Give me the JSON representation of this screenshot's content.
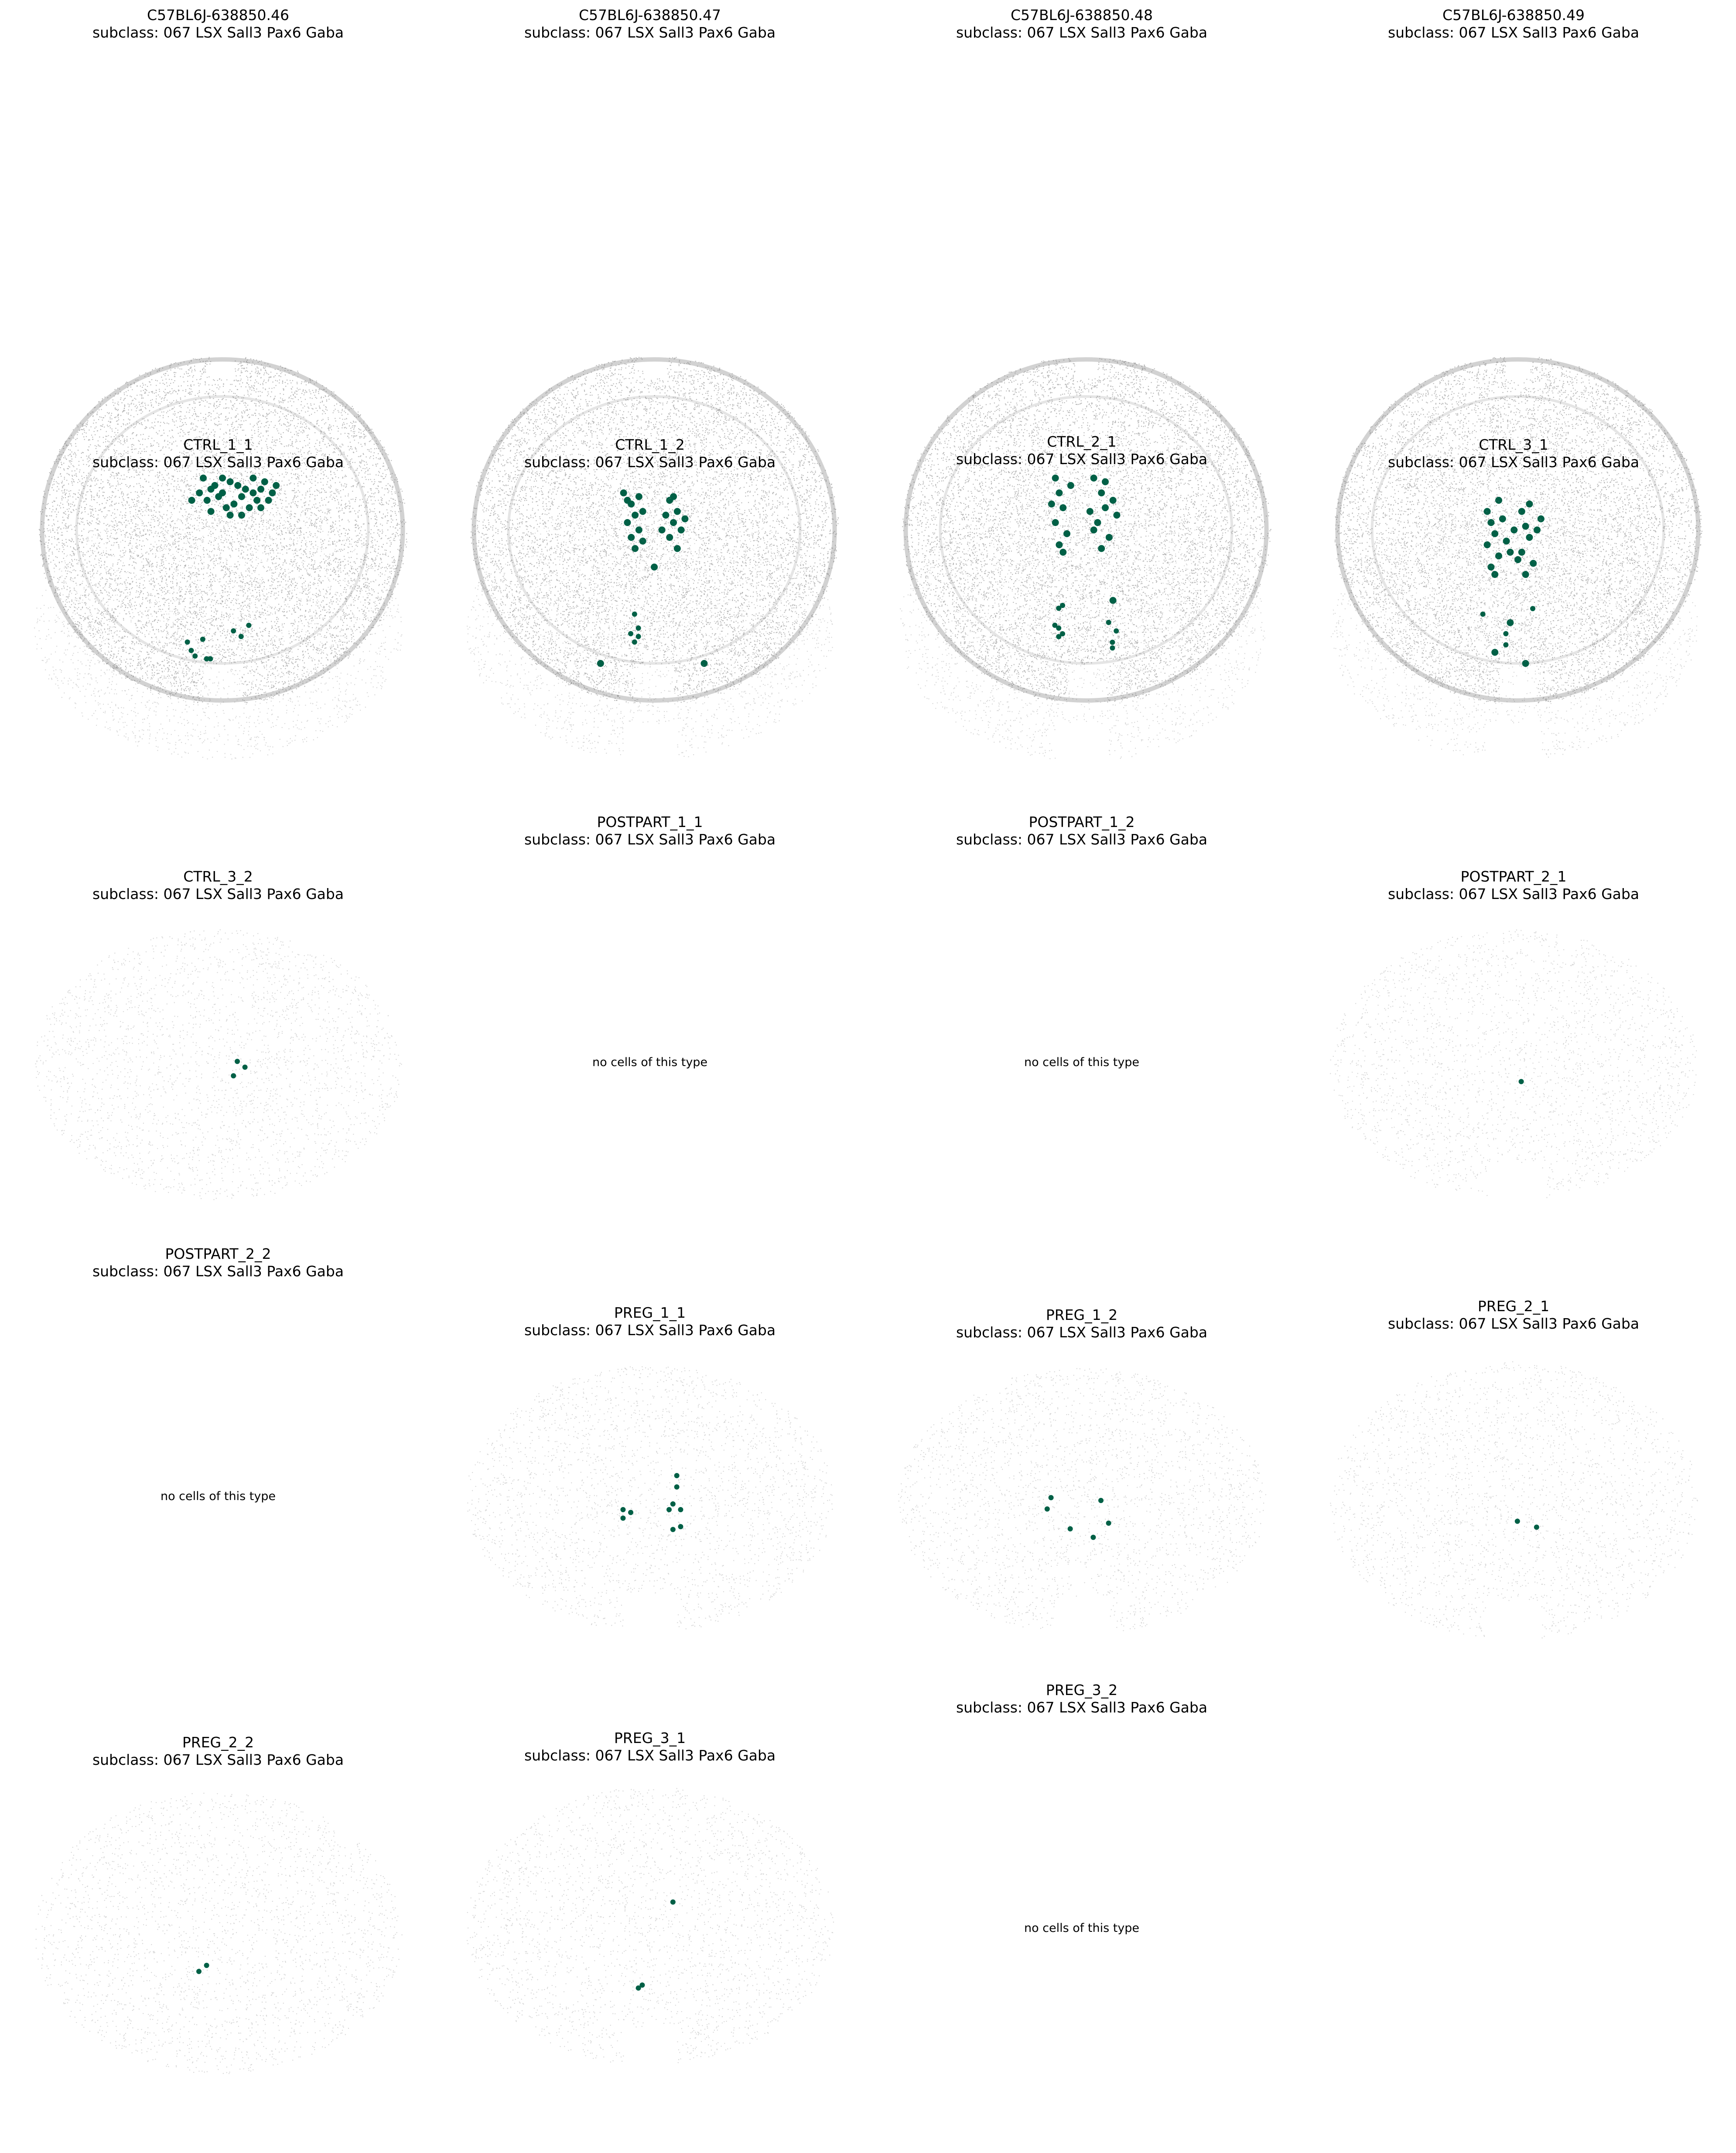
{
  "chart_data": {
    "type": "scatter",
    "cell_color": "#006046",
    "background_color": "#7f7f7f",
    "empty_message": "no cells of this type",
    "panels": [
      {
        "title": "C57BL6J-638850.46",
        "subtitle": "subclass: 067 LSX Sall3 Pax6 Gaba",
        "style": "dense",
        "shape": "full",
        "cells": [
          [
            0.48,
            0.38
          ],
          [
            0.5,
            0.4
          ],
          [
            0.52,
            0.37
          ],
          [
            0.46,
            0.42
          ],
          [
            0.55,
            0.41
          ],
          [
            0.58,
            0.36
          ],
          [
            0.6,
            0.39
          ],
          [
            0.62,
            0.42
          ],
          [
            0.57,
            0.44
          ],
          [
            0.45,
            0.36
          ],
          [
            0.51,
            0.44
          ],
          [
            0.54,
            0.38
          ],
          [
            0.49,
            0.41
          ],
          [
            0.61,
            0.37
          ],
          [
            0.63,
            0.4
          ],
          [
            0.47,
            0.39
          ],
          [
            0.53,
            0.43
          ],
          [
            0.59,
            0.42
          ],
          [
            0.56,
            0.39
          ],
          [
            0.44,
            0.4
          ],
          [
            0.5,
            0.36
          ],
          [
            0.6,
            0.44
          ],
          [
            0.42,
            0.42
          ],
          [
            0.58,
            0.4
          ],
          [
            0.52,
            0.46
          ],
          [
            0.64,
            0.38
          ],
          [
            0.47,
            0.45
          ],
          [
            0.55,
            0.46
          ]
        ]
      },
      {
        "title": "C57BL6J-638850.47",
        "subtitle": "subclass: 067 LSX Sall3 Pax6 Gaba",
        "style": "dense",
        "shape": "full",
        "cells": [
          [
            0.42,
            0.4
          ],
          [
            0.44,
            0.43
          ],
          [
            0.45,
            0.46
          ],
          [
            0.43,
            0.48
          ],
          [
            0.46,
            0.5
          ],
          [
            0.44,
            0.52
          ],
          [
            0.47,
            0.45
          ],
          [
            0.45,
            0.55
          ],
          [
            0.43,
            0.42
          ],
          [
            0.46,
            0.41
          ],
          [
            0.54,
            0.42
          ],
          [
            0.56,
            0.45
          ],
          [
            0.55,
            0.48
          ],
          [
            0.57,
            0.5
          ],
          [
            0.54,
            0.52
          ],
          [
            0.56,
            0.55
          ],
          [
            0.53,
            0.46
          ],
          [
            0.58,
            0.47
          ],
          [
            0.55,
            0.41
          ],
          [
            0.52,
            0.5
          ],
          [
            0.47,
            0.53
          ],
          [
            0.5,
            0.6
          ],
          [
            0.36,
            0.86
          ],
          [
            0.63,
            0.86
          ]
        ]
      },
      {
        "title": "C57BL6J-638850.48",
        "subtitle": "subclass: 067 LSX Sall3 Pax6 Gaba",
        "style": "dense",
        "shape": "full",
        "cells": [
          [
            0.42,
            0.36
          ],
          [
            0.43,
            0.4
          ],
          [
            0.44,
            0.44
          ],
          [
            0.42,
            0.48
          ],
          [
            0.45,
            0.51
          ],
          [
            0.43,
            0.54
          ],
          [
            0.41,
            0.43
          ],
          [
            0.46,
            0.38
          ],
          [
            0.44,
            0.56
          ],
          [
            0.52,
            0.36
          ],
          [
            0.54,
            0.4
          ],
          [
            0.55,
            0.44
          ],
          [
            0.53,
            0.48
          ],
          [
            0.56,
            0.52
          ],
          [
            0.54,
            0.55
          ],
          [
            0.57,
            0.42
          ],
          [
            0.52,
            0.5
          ],
          [
            0.58,
            0.46
          ],
          [
            0.55,
            0.37
          ],
          [
            0.51,
            0.45
          ],
          [
            0.57,
            0.69
          ]
        ]
      },
      {
        "title": "C57BL6J-638850.49",
        "subtitle": "subclass: 067 LSX Sall3 Pax6 Gaba",
        "style": "dense",
        "shape": "full",
        "cells": [
          [
            0.42,
            0.45
          ],
          [
            0.43,
            0.48
          ],
          [
            0.44,
            0.51
          ],
          [
            0.42,
            0.54
          ],
          [
            0.45,
            0.57
          ],
          [
            0.43,
            0.6
          ],
          [
            0.46,
            0.47
          ],
          [
            0.44,
            0.62
          ],
          [
            0.47,
            0.53
          ],
          [
            0.51,
            0.45
          ],
          [
            0.52,
            0.49
          ],
          [
            0.53,
            0.52
          ],
          [
            0.51,
            0.56
          ],
          [
            0.54,
            0.59
          ],
          [
            0.52,
            0.62
          ],
          [
            0.55,
            0.5
          ],
          [
            0.5,
            0.58
          ],
          [
            0.56,
            0.47
          ],
          [
            0.48,
            0.56
          ],
          [
            0.49,
            0.5
          ],
          [
            0.45,
            0.42
          ],
          [
            0.53,
            0.43
          ],
          [
            0.48,
            0.75
          ],
          [
            0.44,
            0.83
          ],
          [
            0.52,
            0.86
          ]
        ]
      },
      {
        "title": "CTRL_1_1",
        "subtitle": "subclass: 067 LSX Sall3 Pax6 Gaba",
        "style": "sparse",
        "shape": "round",
        "cells": [
          [
            0.42,
            0.55
          ],
          [
            0.43,
            0.58
          ],
          [
            0.44,
            0.6
          ],
          [
            0.46,
            0.54
          ],
          [
            0.47,
            0.61
          ],
          [
            0.48,
            0.61
          ],
          [
            0.54,
            0.51
          ],
          [
            0.56,
            0.53
          ],
          [
            0.58,
            0.49
          ]
        ]
      },
      {
        "title": "CTRL_1_2",
        "subtitle": "subclass: 067 LSX Sall3 Pax6 Gaba",
        "style": "sparse",
        "shape": "notched",
        "cells": [
          [
            0.46,
            0.45
          ],
          [
            0.45,
            0.52
          ],
          [
            0.47,
            0.5
          ],
          [
            0.47,
            0.53
          ],
          [
            0.46,
            0.55
          ]
        ]
      },
      {
        "title": "CTRL_2_1",
        "subtitle": "subclass: 067 LSX Sall3 Pax6 Gaba",
        "style": "sparse",
        "shape": "notched",
        "cells": [
          [
            0.44,
            0.43
          ],
          [
            0.45,
            0.42
          ],
          [
            0.43,
            0.49
          ],
          [
            0.44,
            0.5
          ],
          [
            0.45,
            0.52
          ],
          [
            0.44,
            0.53
          ],
          [
            0.57,
            0.48
          ],
          [
            0.59,
            0.51
          ],
          [
            0.58,
            0.55
          ],
          [
            0.58,
            0.57
          ]
        ]
      },
      {
        "title": "CTRL_3_1",
        "subtitle": "subclass: 067 LSX Sall3 Pax6 Gaba",
        "style": "sparse",
        "shape": "notched",
        "cells": [
          [
            0.42,
            0.45
          ],
          [
            0.48,
            0.52
          ],
          [
            0.48,
            0.56
          ],
          [
            0.55,
            0.43
          ]
        ]
      },
      {
        "title": "CTRL_3_2",
        "subtitle": "subclass: 067 LSX Sall3 Pax6 Gaba",
        "style": "sparse",
        "shape": "round",
        "cells": [
          [
            0.55,
            0.49
          ],
          [
            0.57,
            0.51
          ],
          [
            0.54,
            0.54
          ]
        ]
      },
      {
        "title": "POSTPART_1_1",
        "subtitle": "subclass: 067 LSX Sall3 Pax6 Gaba",
        "style": "none",
        "shape": "none",
        "cells": []
      },
      {
        "title": "POSTPART_1_2",
        "subtitle": "subclass: 067 LSX Sall3 Pax6 Gaba",
        "style": "none",
        "shape": "none",
        "cells": []
      },
      {
        "title": "POSTPART_2_1",
        "subtitle": "subclass: 067 LSX Sall3 Pax6 Gaba",
        "style": "sparse",
        "shape": "notched",
        "cells": [
          [
            0.52,
            0.56
          ]
        ]
      },
      {
        "title": "POSTPART_2_2",
        "subtitle": "subclass: 067 LSX Sall3 Pax6 Gaba",
        "style": "none",
        "shape": "none",
        "cells": []
      },
      {
        "title": "PREG_1_1",
        "subtitle": "subclass: 067 LSX Sall3 Pax6 Gaba",
        "style": "sparse",
        "shape": "notched",
        "cells": [
          [
            0.43,
            0.54
          ],
          [
            0.45,
            0.55
          ],
          [
            0.43,
            0.57
          ],
          [
            0.57,
            0.42
          ],
          [
            0.57,
            0.46
          ],
          [
            0.56,
            0.52
          ],
          [
            0.55,
            0.54
          ],
          [
            0.58,
            0.54
          ],
          [
            0.56,
            0.61
          ],
          [
            0.58,
            0.6
          ]
        ]
      },
      {
        "title": "PREG_1_2",
        "subtitle": "subclass: 067 LSX Sall3 Pax6 Gaba",
        "style": "sparse",
        "shape": "notched",
        "cells": [
          [
            0.42,
            0.49
          ],
          [
            0.41,
            0.53
          ],
          [
            0.47,
            0.6
          ],
          [
            0.55,
            0.5
          ],
          [
            0.57,
            0.58
          ],
          [
            0.53,
            0.63
          ]
        ]
      },
      {
        "title": "PREG_2_1",
        "subtitle": "subclass: 067 LSX Sall3 Pax6 Gaba",
        "style": "sparse",
        "shape": "notched",
        "cells": [
          [
            0.51,
            0.57
          ],
          [
            0.56,
            0.59
          ]
        ]
      },
      {
        "title": "PREG_2_2",
        "subtitle": "subclass: 067 LSX Sall3 Pax6 Gaba",
        "style": "sparse",
        "shape": "round",
        "cells": [
          [
            0.45,
            0.63
          ],
          [
            0.47,
            0.61
          ]
        ]
      },
      {
        "title": "PREG_3_1",
        "subtitle": "subclass: 067 LSX Sall3 Pax6 Gaba",
        "style": "sparse",
        "shape": "notched",
        "cells": [
          [
            0.56,
            0.42
          ],
          [
            0.47,
            0.71
          ],
          [
            0.48,
            0.7
          ]
        ]
      },
      {
        "title": "PREG_3_2",
        "subtitle": "subclass: 067 LSX Sall3 Pax6 Gaba",
        "style": "none",
        "shape": "none",
        "cells": []
      }
    ]
  }
}
